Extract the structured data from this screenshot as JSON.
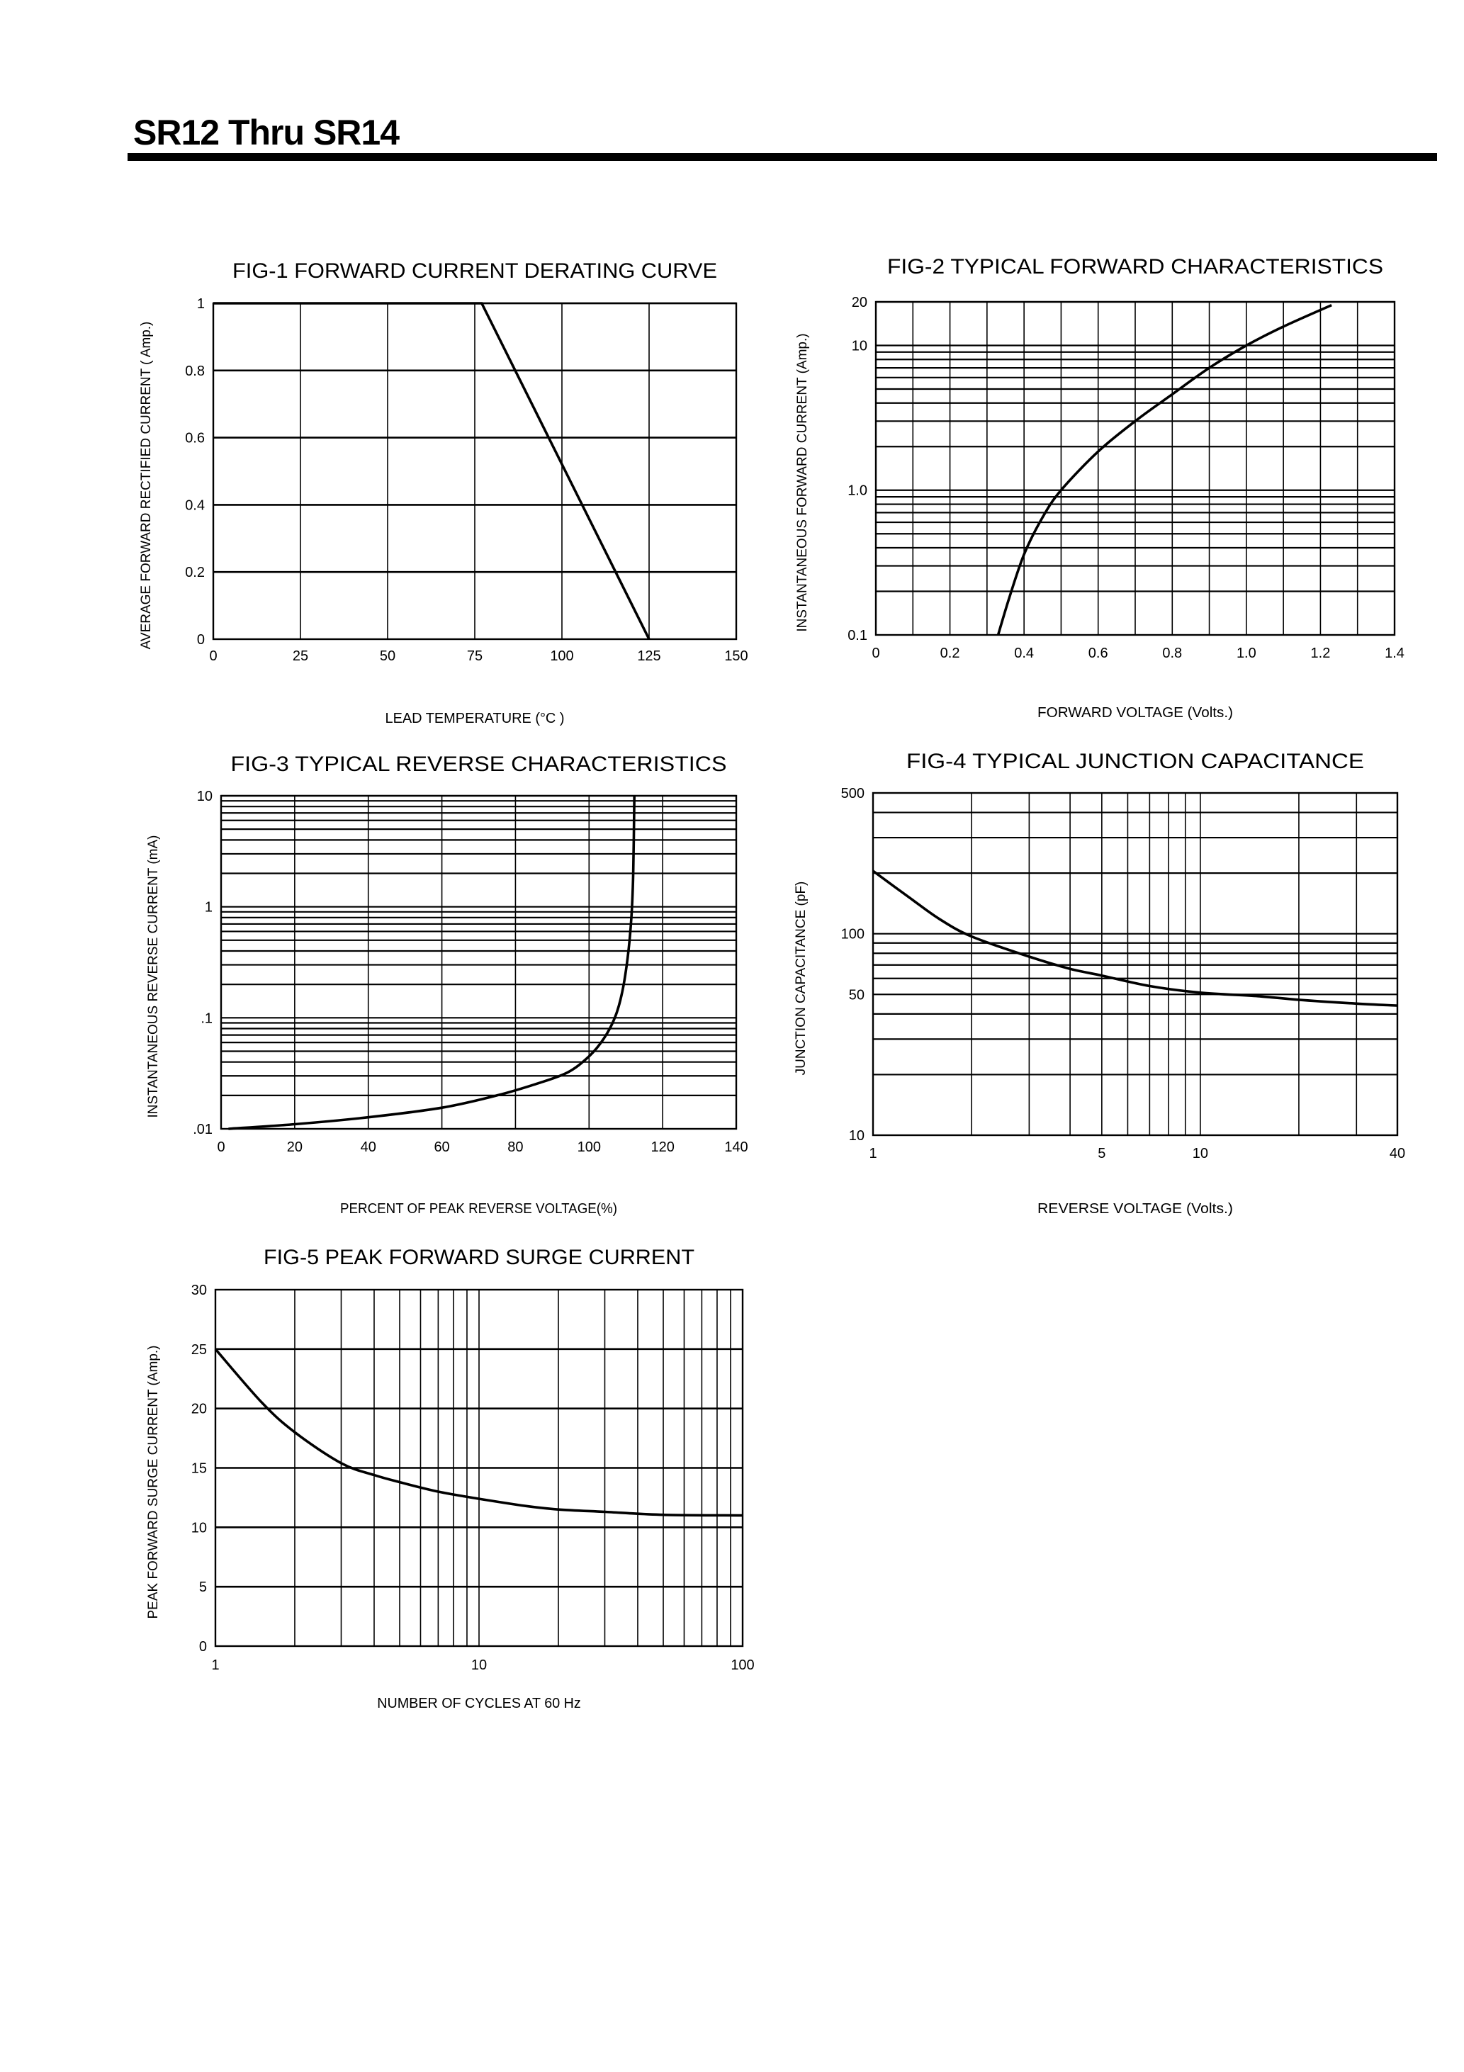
{
  "header": {
    "title": "SR12 Thru SR14"
  },
  "colors": {
    "ink": "#000000",
    "background": "#ffffff"
  },
  "chart_data": [
    {
      "id": "fig1",
      "type": "line",
      "title": "FIG-1 FORWARD CURRENT DERATING CURVE",
      "xlabel": "LEAD TEMPERATURE (°C )",
      "ylabel": "AVERAGE FORWARD RECTIFIED CURRENT ( Amp.)",
      "xscale": "linear",
      "yscale": "linear",
      "xlim": [
        0,
        150
      ],
      "ylim": [
        0,
        1
      ],
      "xgrid": [
        25,
        50,
        75,
        100,
        125
      ],
      "ygrid": [
        0.2,
        0.4,
        0.6,
        0.8,
        1
      ],
      "xticks": [
        {
          "v": 0,
          "label": "0"
        },
        {
          "v": 25,
          "label": "25"
        },
        {
          "v": 50,
          "label": "50"
        },
        {
          "v": 75,
          "label": "75"
        },
        {
          "v": 100,
          "label": "100"
        },
        {
          "v": 125,
          "label": "125"
        },
        {
          "v": 150,
          "label": "150"
        }
      ],
      "yticks": [
        {
          "v": 0,
          "label": "0"
        },
        {
          "v": 0.2,
          "label": "0.2"
        },
        {
          "v": 0.4,
          "label": "0.4"
        },
        {
          "v": 0.6,
          "label": "0.6"
        },
        {
          "v": 0.8,
          "label": "0.8"
        },
        {
          "v": 1,
          "label": "1"
        }
      ],
      "series": [
        {
          "points": [
            [
              0,
              1
            ],
            [
              77,
              1
            ],
            [
              125,
              0
            ]
          ]
        }
      ]
    },
    {
      "id": "fig2",
      "type": "line",
      "title": "FIG-2 TYPICAL FORWARD CHARACTERISTICS",
      "xlabel": "FORWARD VOLTAGE (Volts.)",
      "ylabel": "INSTANTANEOUS FORWARD CURRENT (Amp.)",
      "xscale": "linear",
      "yscale": "log",
      "xlim": [
        0,
        1.4
      ],
      "ylim": [
        0.1,
        20
      ],
      "xgrid": [
        0.1,
        0.2,
        0.3,
        0.4,
        0.5,
        0.6,
        0.7,
        0.8,
        0.9,
        1.0,
        1.1,
        1.2,
        1.3
      ],
      "ygrid": [
        0.2,
        0.3,
        0.4,
        0.5,
        0.6,
        0.7,
        0.8,
        0.9,
        1,
        2,
        3,
        4,
        5,
        6,
        7,
        8,
        9,
        10,
        20
      ],
      "xticks": [
        {
          "v": 0,
          "label": "0"
        },
        {
          "v": 0.2,
          "label": "0.2"
        },
        {
          "v": 0.4,
          "label": "0.4"
        },
        {
          "v": 0.6,
          "label": "0.6"
        },
        {
          "v": 0.8,
          "label": "0.8"
        },
        {
          "v": 1.0,
          "label": "1.0"
        },
        {
          "v": 1.2,
          "label": "1.2"
        },
        {
          "v": 1.4,
          "label": "1.4"
        }
      ],
      "yticks": [
        {
          "v": 0.1,
          "label": "0.1"
        },
        {
          "v": 1,
          "label": "1.0"
        },
        {
          "v": 10,
          "label": "10"
        },
        {
          "v": 20,
          "label": "20"
        }
      ],
      "series": [
        {
          "points": [
            [
              0.33,
              0.1
            ],
            [
              0.36,
              0.18
            ],
            [
              0.4,
              0.36
            ],
            [
              0.45,
              0.65
            ],
            [
              0.5,
              1.0
            ],
            [
              0.6,
              1.85
            ],
            [
              0.7,
              3.0
            ],
            [
              0.8,
              4.6
            ],
            [
              0.9,
              7.0
            ],
            [
              1.0,
              10
            ],
            [
              1.1,
              13.5
            ],
            [
              1.23,
              19
            ]
          ]
        }
      ]
    },
    {
      "id": "fig3",
      "type": "line",
      "title": "FIG-3 TYPICAL REVERSE CHARACTERISTICS",
      "xlabel": "PERCENT OF PEAK REVERSE VOLTAGE(%)",
      "ylabel": "INSTANTANEOUS REVERSE CURRENT (mA)",
      "xscale": "linear",
      "yscale": "log",
      "xlim": [
        0,
        140
      ],
      "ylim": [
        0.01,
        10
      ],
      "xgrid": [
        20,
        40,
        60,
        80,
        100,
        120
      ],
      "ygrid": [
        0.02,
        0.03,
        0.04,
        0.05,
        0.06,
        0.07,
        0.08,
        0.09,
        0.1,
        0.2,
        0.3,
        0.4,
        0.5,
        0.6,
        0.7,
        0.8,
        0.9,
        1,
        2,
        3,
        4,
        5,
        6,
        7,
        8,
        9,
        10
      ],
      "xticks": [
        {
          "v": 0,
          "label": "0"
        },
        {
          "v": 20,
          "label": "20"
        },
        {
          "v": 40,
          "label": "40"
        },
        {
          "v": 60,
          "label": "60"
        },
        {
          "v": 80,
          "label": "80"
        },
        {
          "v": 100,
          "label": "100"
        },
        {
          "v": 120,
          "label": "120"
        },
        {
          "v": 140,
          "label": "140"
        }
      ],
      "yticks": [
        {
          "v": 0.01,
          "label": ".01"
        },
        {
          "v": 0.1,
          "label": ".1"
        },
        {
          "v": 1,
          "label": "1"
        },
        {
          "v": 10,
          "label": "10"
        }
      ],
      "series": [
        {
          "points": [
            [
              2,
              0.01
            ],
            [
              20,
              0.011
            ],
            [
              40,
              0.0127
            ],
            [
              60,
              0.0155
            ],
            [
              75,
              0.02
            ],
            [
              85,
              0.025
            ],
            [
              94,
              0.032
            ],
            [
              100,
              0.045
            ],
            [
              104,
              0.065
            ],
            [
              107,
              0.1
            ],
            [
              109,
              0.17
            ],
            [
              110.5,
              0.35
            ],
            [
              111.5,
              0.8
            ],
            [
              112,
              2
            ],
            [
              112.3,
              10
            ]
          ]
        }
      ]
    },
    {
      "id": "fig4",
      "type": "line",
      "title": "FIG-4 TYPICAL JUNCTION CAPACITANCE",
      "xlabel": "REVERSE VOLTAGE (Volts.)",
      "ylabel": "JUNCTION CAPACITANCE (pF)",
      "xscale": "log",
      "yscale": "log",
      "xlim": [
        1,
        40
      ],
      "ylim": [
        10,
        500
      ],
      "xgrid": [
        2,
        3,
        4,
        5,
        6,
        7,
        8,
        9,
        10,
        20,
        30
      ],
      "ygrid": [
        20,
        30,
        40,
        50,
        60,
        70,
        80,
        90,
        100,
        200,
        300,
        400
      ],
      "xticks": [
        {
          "v": 1,
          "label": "1"
        },
        {
          "v": 5,
          "label": "5"
        },
        {
          "v": 10,
          "label": "10"
        },
        {
          "v": 40,
          "label": "40"
        }
      ],
      "yticks": [
        {
          "v": 10,
          "label": "10"
        },
        {
          "v": 50,
          "label": "50"
        },
        {
          "v": 100,
          "label": "100"
        },
        {
          "v": 500,
          "label": "500"
        }
      ],
      "series": [
        {
          "points": [
            [
              1,
              205
            ],
            [
              1.3,
              150
            ],
            [
              1.6,
              118
            ],
            [
              2,
              97
            ],
            [
              3,
              77
            ],
            [
              4,
              67
            ],
            [
              5,
              62
            ],
            [
              7,
              55
            ],
            [
              10,
              51
            ],
            [
              15,
              49
            ],
            [
              20,
              47
            ],
            [
              30,
              45
            ],
            [
              40,
              44
            ]
          ]
        }
      ]
    },
    {
      "id": "fig5",
      "type": "line",
      "title": "FIG-5 PEAK FORWARD SURGE CURRENT",
      "xlabel": "NUMBER OF CYCLES AT 60 Hz",
      "ylabel": "PEAK FORWARD SURGE CURRENT (Amp.)",
      "xscale": "log",
      "yscale": "linear",
      "xlim": [
        1,
        100
      ],
      "ylim": [
        0,
        30
      ],
      "xgrid": [
        2,
        3,
        4,
        5,
        6,
        7,
        8,
        9,
        10,
        20,
        30,
        40,
        50,
        60,
        70,
        80,
        90
      ],
      "ygrid": [
        5,
        10,
        15,
        20,
        25
      ],
      "xticks": [
        {
          "v": 1,
          "label": "1"
        },
        {
          "v": 10,
          "label": "10"
        },
        {
          "v": 100,
          "label": "100"
        }
      ],
      "yticks": [
        {
          "v": 0,
          "label": "0"
        },
        {
          "v": 5,
          "label": "5"
        },
        {
          "v": 10,
          "label": "10"
        },
        {
          "v": 15,
          "label": "15"
        },
        {
          "v": 20,
          "label": "20"
        },
        {
          "v": 25,
          "label": "25"
        },
        {
          "v": 30,
          "label": "30"
        }
      ],
      "series": [
        {
          "points": [
            [
              1,
              25
            ],
            [
              1.5,
              20.5
            ],
            [
              2,
              18
            ],
            [
              3,
              15.4
            ],
            [
              4,
              14.4
            ],
            [
              5,
              13.8
            ],
            [
              7,
              13
            ],
            [
              10,
              12.4
            ],
            [
              15,
              11.8
            ],
            [
              20,
              11.5
            ],
            [
              30,
              11.3
            ],
            [
              50,
              11.05
            ],
            [
              100,
              11
            ]
          ]
        }
      ]
    }
  ]
}
